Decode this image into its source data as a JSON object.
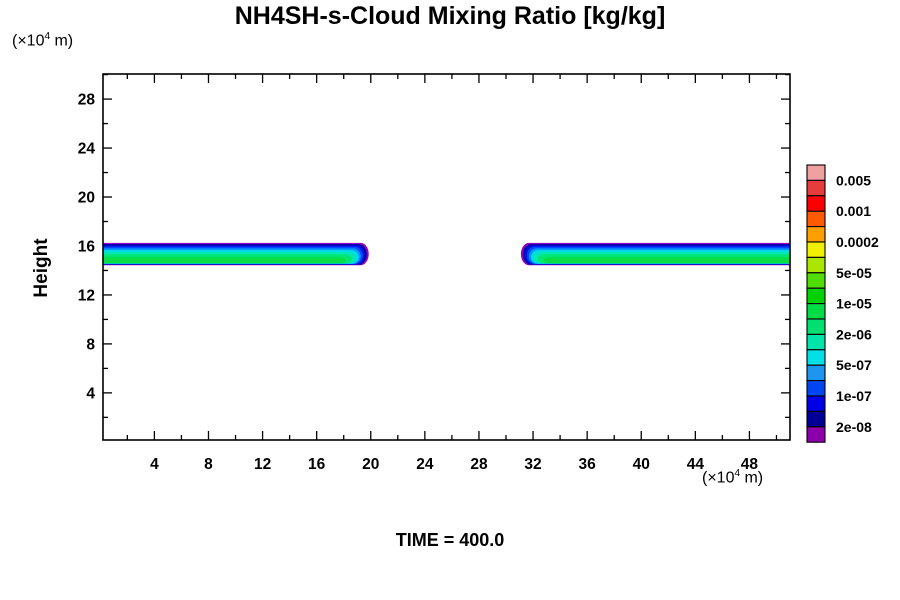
{
  "title": "NH4SH-s-Cloud Mixing Ratio [kg/kg]",
  "time_label": "TIME = 400.0",
  "y_axis": {
    "label": "Height",
    "unit": {
      "prefix": "(×10",
      "sup": "4",
      "suffix": " m)"
    },
    "range": [
      0.15,
      30.05
    ],
    "major_ticks": [
      4,
      8,
      12,
      16,
      20,
      24,
      28
    ],
    "minor_ticks": [
      2,
      6,
      10,
      14,
      18,
      22,
      26,
      30
    ]
  },
  "x_axis": {
    "unit": {
      "prefix": "(×10",
      "sup": "4",
      "suffix": " m)"
    },
    "range": [
      0.2,
      51.0
    ],
    "major_ticks": [
      4,
      8,
      12,
      16,
      20,
      24,
      28,
      32,
      36,
      40,
      44,
      48
    ],
    "minor_ticks": [
      2,
      6,
      10,
      14,
      18,
      22,
      26,
      30,
      34,
      38,
      42,
      46,
      50
    ]
  },
  "colorbar": {
    "colors_top_to_bottom": [
      "#F0A0A0",
      "#E63C3C",
      "#FA0000",
      "#FF5A00",
      "#FFA000",
      "#F0F000",
      "#AAE600",
      "#50DC00",
      "#00D200",
      "#00DC46",
      "#00E070",
      "#00E6AA",
      "#00E0E6",
      "#1E96F0",
      "#0046F0",
      "#0000E6",
      "#000096",
      "#8C00AA"
    ],
    "labels": [
      "0.005",
      "0.001",
      "0.0002",
      "5e-05",
      "1e-05",
      "2e-06",
      "5e-07",
      "1e-07",
      "2e-08"
    ],
    "label_boundary_indices": [
      1,
      3,
      5,
      7,
      9,
      11,
      13,
      15,
      17
    ]
  },
  "chart_data": {
    "type": "filled_contour",
    "title": "NH4SH-s-Cloud Mixing Ratio [kg/kg]",
    "xlabel_unit": "x10^4 m",
    "ylabel": "Height (x10^4 m)",
    "x_range": [
      0.2,
      51.0
    ],
    "y_range": [
      0.15,
      30.05
    ],
    "time": "400.0",
    "cloud_top_height": 16.25,
    "cloud_base_height": 14.43,
    "bands": [
      {
        "x_start": 0.2,
        "x_end": 19.85,
        "tip": "right"
      },
      {
        "x_start": 31.1,
        "x_end": 51.0,
        "tip": "left"
      }
    ],
    "levels_outer_to_inner": [
      {
        "min_value": "<2e-08",
        "color": "#9400C8"
      },
      {
        "min_value": "2e-08",
        "color": "#0000A0"
      },
      {
        "min_value": "5e-08",
        "color": "#0010E6"
      },
      {
        "min_value": "1e-07",
        "color": "#0048FF"
      },
      {
        "min_value": "2e-07",
        "color": "#0098FF"
      },
      {
        "min_value": "5e-07",
        "color": "#00DCE6"
      },
      {
        "min_value": "1e-06",
        "color": "#00E6B4"
      },
      {
        "min_value": "2e-06",
        "color": "#00E66E"
      },
      {
        "min_value": "5e-06",
        "color": "#0ADC46"
      }
    ]
  }
}
